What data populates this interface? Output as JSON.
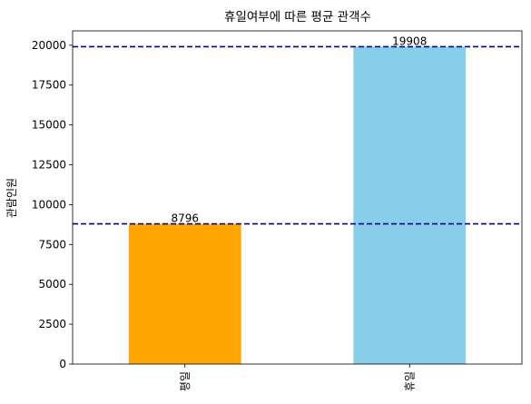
{
  "chart_data": {
    "type": "bar",
    "title": "휴일여부에 따른 평균 관객수",
    "xlabel": "",
    "ylabel": "관람인원",
    "categories": [
      "평일",
      "휴일"
    ],
    "values": [
      8796,
      19908
    ],
    "bar_labels": [
      "8796",
      "19908"
    ],
    "bar_colors": [
      "#FFA500",
      "#87CEEB"
    ],
    "reference_lines": [
      {
        "value": 8796,
        "style": "dashed",
        "color": "#00008B"
      },
      {
        "value": 19908,
        "style": "dashed",
        "color": "#00008B"
      }
    ],
    "ylim": [
      0,
      20900
    ],
    "yticks": [
      0,
      2500,
      5000,
      7500,
      10000,
      12500,
      15000,
      17500,
      20000
    ],
    "ytick_labels": [
      "0",
      "2500",
      "5000",
      "7500",
      "10000",
      "12500",
      "15000",
      "17500",
      "20000"
    ],
    "grid": false,
    "legend": "none"
  }
}
